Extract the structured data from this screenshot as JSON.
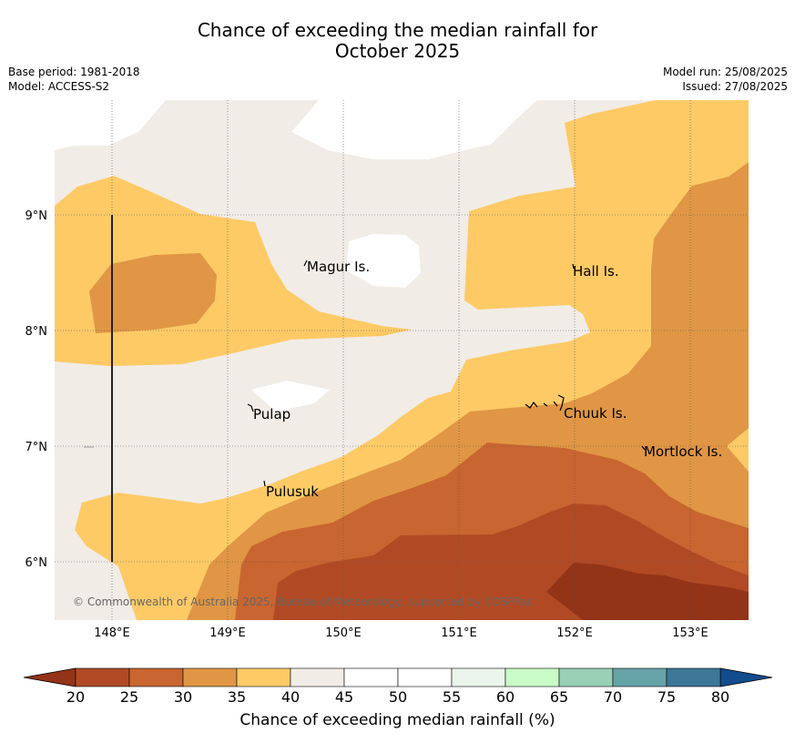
{
  "title_line1": "Chance of exceeding the median rainfall for",
  "title_line2": "October 2025",
  "meta_left": {
    "base_period": "Base period: 1981-2018",
    "model": "Model: ACCESS-S2"
  },
  "meta_right": {
    "model_run": "Model run: 25/08/2025",
    "issued": "Issued: 27/08/2025"
  },
  "map": {
    "lat_ticks": [
      "6°N",
      "7°N",
      "8°N",
      "9°N"
    ],
    "lon_ticks": [
      "148°E",
      "149°E",
      "150°E",
      "151°E",
      "152°E",
      "153°E"
    ],
    "places": [
      "Magur Is.",
      "Hall Is.",
      "Pulap",
      "Chuuk Is.",
      "Mortlock Is.",
      "Pulusuk"
    ],
    "copyright": "© Commonwealth of Australia 2025, Bureau of Meteorology, supported by COSPPac"
  },
  "colorbar": {
    "ticks": [
      "20",
      "25",
      "30",
      "35",
      "40",
      "45",
      "50",
      "55",
      "60",
      "65",
      "70",
      "75",
      "80"
    ],
    "colors": [
      "#b14a24",
      "#c96530",
      "#e09644",
      "#fdca66",
      "#f1ece6",
      "#ffffff",
      "#ffffff",
      "#ecf5ec",
      "#c8fbc6",
      "#99d0b6",
      "#66a3a7",
      "#3d7696"
    ],
    "under_color": "#933318",
    "over_color": "#124c8c",
    "label": "Chance of exceeding median rainfall (%)"
  }
}
